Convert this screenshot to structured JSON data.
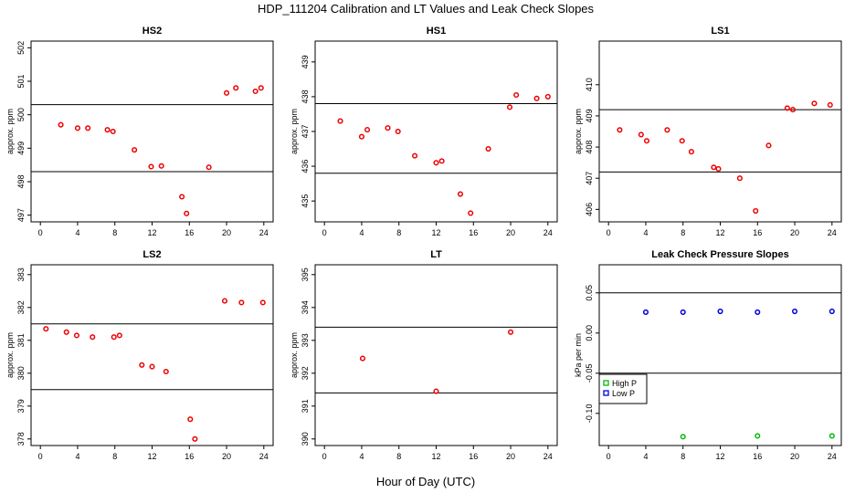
{
  "figure": {
    "title": "HDP_111204  Calibration and LT Values and Leak Check Slopes",
    "xlabel": "Hour of Day (UTC)"
  },
  "colors": {
    "red": "#ee0000",
    "green": "#00bb00",
    "blue": "#0000dd",
    "line": "#000000"
  },
  "chart_data": [
    {
      "id": "hs2",
      "type": "scatter",
      "title": "HS2",
      "ylabel": "approx. ppm",
      "xlim": [
        -1,
        25
      ],
      "ylim": [
        496.8,
        502.2
      ],
      "xticks": [
        0,
        4,
        8,
        12,
        16,
        20,
        24
      ],
      "yticks": [
        497,
        498,
        499,
        500,
        501,
        502
      ],
      "hlines": [
        500.3,
        498.3
      ],
      "series": [
        {
          "color": "red",
          "points": [
            [
              2.2,
              499.7
            ],
            [
              4,
              499.6
            ],
            [
              5.1,
              499.6
            ],
            [
              7.2,
              499.55
            ],
            [
              7.8,
              499.5
            ],
            [
              10.1,
              498.95
            ],
            [
              11.9,
              498.45
            ],
            [
              13,
              498.47
            ],
            [
              15.2,
              497.55
            ],
            [
              15.7,
              497.05
            ],
            [
              18.1,
              498.43
            ],
            [
              20,
              500.65
            ],
            [
              21,
              500.8
            ],
            [
              23.1,
              500.7
            ],
            [
              23.7,
              500.8
            ]
          ]
        }
      ]
    },
    {
      "id": "hs1",
      "type": "scatter",
      "title": "HS1",
      "ylabel": "approx. ppm",
      "xlim": [
        -1,
        25
      ],
      "ylim": [
        434.4,
        439.6
      ],
      "xticks": [
        0,
        4,
        8,
        12,
        16,
        20,
        24
      ],
      "yticks": [
        435,
        436,
        437,
        438,
        439
      ],
      "hlines": [
        437.8,
        435.8
      ],
      "series": [
        {
          "color": "red",
          "points": [
            [
              1.7,
              437.3
            ],
            [
              4,
              436.85
            ],
            [
              4.6,
              437.05
            ],
            [
              6.8,
              437.1
            ],
            [
              7.9,
              437.0
            ],
            [
              9.7,
              436.3
            ],
            [
              12,
              436.1
            ],
            [
              12.6,
              436.15
            ],
            [
              14.6,
              435.2
            ],
            [
              15.7,
              434.65
            ],
            [
              17.6,
              436.5
            ],
            [
              19.9,
              437.7
            ],
            [
              20.6,
              438.05
            ],
            [
              22.8,
              437.95
            ],
            [
              24,
              438.0
            ]
          ]
        }
      ]
    },
    {
      "id": "ls1",
      "type": "scatter",
      "title": "LS1",
      "ylabel": "approx. ppm",
      "xlim": [
        -1,
        25
      ],
      "ylim": [
        405.6,
        411.4
      ],
      "xticks": [
        0,
        4,
        8,
        12,
        16,
        20,
        24
      ],
      "yticks": [
        406,
        407,
        408,
        409,
        410
      ],
      "hlines": [
        409.2,
        407.2
      ],
      "series": [
        {
          "color": "red",
          "points": [
            [
              1.2,
              408.55
            ],
            [
              3.5,
              408.4
            ],
            [
              4.1,
              408.2
            ],
            [
              6.3,
              408.55
            ],
            [
              7.9,
              408.2
            ],
            [
              8.9,
              407.85
            ],
            [
              11.3,
              407.35
            ],
            [
              11.8,
              407.3
            ],
            [
              14.1,
              407.0
            ],
            [
              15.8,
              405.95
            ],
            [
              17.2,
              408.05
            ],
            [
              19.2,
              409.25
            ],
            [
              19.8,
              409.2
            ],
            [
              22.1,
              409.4
            ],
            [
              23.8,
              409.35
            ]
          ]
        }
      ]
    },
    {
      "id": "ls2",
      "type": "scatter",
      "title": "LS2",
      "ylabel": "approx. ppm",
      "xlim": [
        -1,
        25
      ],
      "ylim": [
        377.8,
        383.3
      ],
      "xticks": [
        0,
        4,
        8,
        12,
        16,
        20,
        24
      ],
      "yticks": [
        378,
        379,
        380,
        381,
        382,
        383
      ],
      "hlines": [
        381.5,
        379.5
      ],
      "series": [
        {
          "color": "red",
          "points": [
            [
              0.6,
              381.35
            ],
            [
              2.8,
              381.25
            ],
            [
              3.9,
              381.15
            ],
            [
              5.6,
              381.1
            ],
            [
              7.9,
              381.1
            ],
            [
              8.5,
              381.15
            ],
            [
              10.9,
              380.25
            ],
            [
              12,
              380.2
            ],
            [
              13.5,
              380.05
            ],
            [
              16.1,
              378.6
            ],
            [
              16.6,
              378.0
            ],
            [
              19.8,
              382.2
            ],
            [
              21.6,
              382.15
            ],
            [
              23.9,
              382.15
            ]
          ]
        }
      ]
    },
    {
      "id": "lt",
      "type": "scatter",
      "title": "LT",
      "ylabel": "approx. ppm",
      "xlim": [
        -1,
        25
      ],
      "ylim": [
        389.8,
        395.3
      ],
      "xticks": [
        0,
        4,
        8,
        12,
        16,
        20,
        24
      ],
      "yticks": [
        390,
        391,
        392,
        393,
        394,
        395
      ],
      "hlines": [
        393.4,
        391.4
      ],
      "series": [
        {
          "color": "red",
          "points": [
            [
              4.1,
              392.45
            ],
            [
              12,
              391.45
            ],
            [
              20,
              393.25
            ]
          ]
        }
      ]
    },
    {
      "id": "leak",
      "type": "scatter",
      "title": "Leak Check Pressure Slopes",
      "ylabel": "kPa per min",
      "xlim": [
        -1,
        25
      ],
      "ylim": [
        -0.14,
        0.085
      ],
      "xticks": [
        0,
        4,
        8,
        12,
        16,
        20,
        24
      ],
      "yticks": [
        -0.1,
        -0.05,
        0.0,
        0.05
      ],
      "ytick_labels": [
        "-0.10",
        "-0.05",
        "0.00",
        "0.05"
      ],
      "hlines": [
        0.05,
        -0.05
      ],
      "legend": "left",
      "series": [
        {
          "name": "High P",
          "color": "green",
          "points": [
            [
              8,
              -0.129
            ],
            [
              16,
              -0.128
            ],
            [
              24,
              -0.128
            ]
          ]
        },
        {
          "name": "Low P",
          "color": "blue",
          "points": [
            [
              4,
              0.026
            ],
            [
              8,
              0.026
            ],
            [
              12,
              0.027
            ],
            [
              16,
              0.026
            ],
            [
              20,
              0.027
            ],
            [
              24,
              0.027
            ]
          ]
        }
      ]
    }
  ]
}
